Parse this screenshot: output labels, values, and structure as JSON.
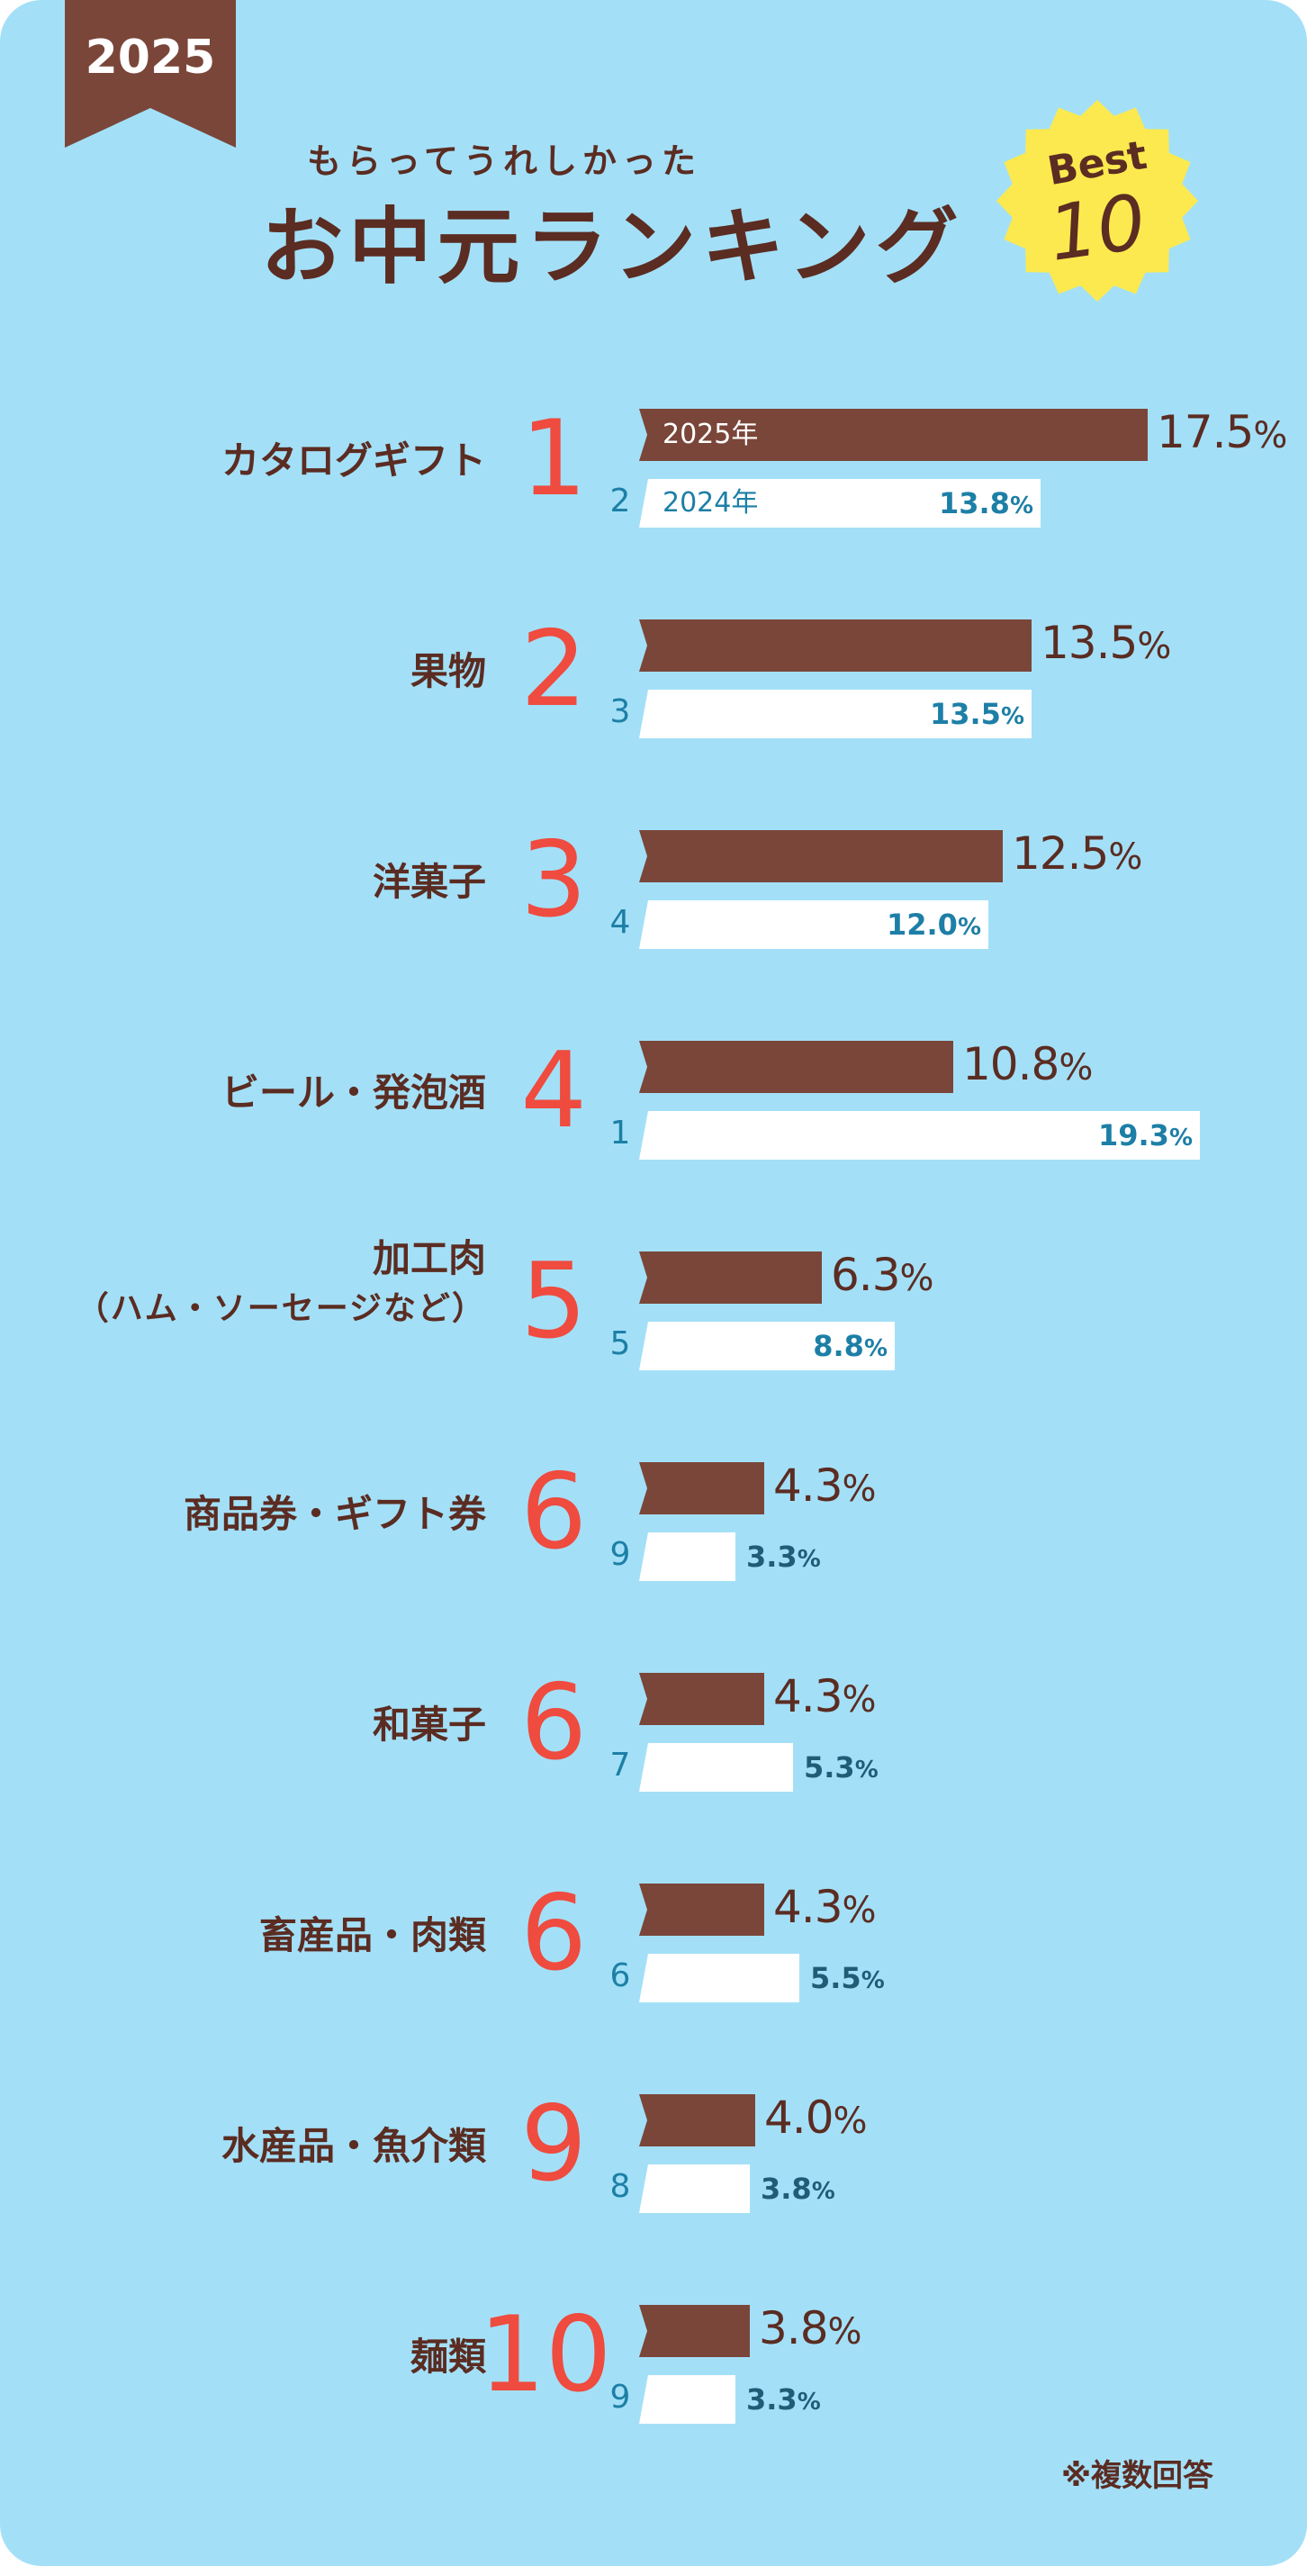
{
  "header": {
    "year": "2025",
    "subtitle": "もらってうれしかった",
    "title": "お中元ランキング",
    "badge_best": "Best",
    "badge_number": "10"
  },
  "colors": {
    "background": "#a3e0f7",
    "bar_current": "#7a4639",
    "bar_previous": "#ffffff",
    "rank_accent": "#ef4b3f",
    "text_brown": "#5b2c22",
    "text_blue": "#1d7fa6",
    "badge_yellow": "#fbe94f"
  },
  "chart_data": {
    "type": "bar",
    "title": "お中元ランキング",
    "series": [
      {
        "name": "2025年",
        "values": [
          17.5,
          13.5,
          12.5,
          10.8,
          6.3,
          4.3,
          4.3,
          4.3,
          4.0,
          3.8
        ]
      },
      {
        "name": "2024年",
        "values": [
          13.8,
          13.5,
          12.0,
          19.3,
          8.8,
          3.3,
          5.3,
          5.5,
          3.8,
          3.3
        ]
      }
    ],
    "items": [
      {
        "category": "カタログギフト",
        "category_sub": "",
        "rank": "1",
        "value": "17.5",
        "prev_rank": "2",
        "prev_value": "13.8"
      },
      {
        "category": "果物",
        "category_sub": "",
        "rank": "2",
        "value": "13.5",
        "prev_rank": "3",
        "prev_value": "13.5"
      },
      {
        "category": "洋菓子",
        "category_sub": "",
        "rank": "3",
        "value": "12.5",
        "prev_rank": "4",
        "prev_value": "12.0"
      },
      {
        "category": "ビール・発泡酒",
        "category_sub": "",
        "rank": "4",
        "value": "10.8",
        "prev_rank": "1",
        "prev_value": "19.3"
      },
      {
        "category": "加工肉",
        "category_sub": "（ハム・ソーセージなど）",
        "rank": "5",
        "value": "6.3",
        "prev_rank": "5",
        "prev_value": "8.8"
      },
      {
        "category": "商品券・ギフト券",
        "category_sub": "",
        "rank": "6",
        "value": "4.3",
        "prev_rank": "9",
        "prev_value": "3.3"
      },
      {
        "category": "和菓子",
        "category_sub": "",
        "rank": "6",
        "value": "4.3",
        "prev_rank": "7",
        "prev_value": "5.3"
      },
      {
        "category": "畜産品・肉類",
        "category_sub": "",
        "rank": "6",
        "value": "4.3",
        "prev_rank": "6",
        "prev_value": "5.5"
      },
      {
        "category": "水産品・魚介類",
        "category_sub": "",
        "rank": "9",
        "value": "4.0",
        "prev_rank": "8",
        "prev_value": "3.8"
      },
      {
        "category": "麺類",
        "category_sub": "",
        "rank": "10",
        "value": "3.8",
        "prev_rank": "9",
        "prev_value": "3.3"
      }
    ],
    "percent_symbol": "%",
    "legend_current": "2025年",
    "legend_previous": "2024年"
  },
  "footnote": "※複数回答"
}
